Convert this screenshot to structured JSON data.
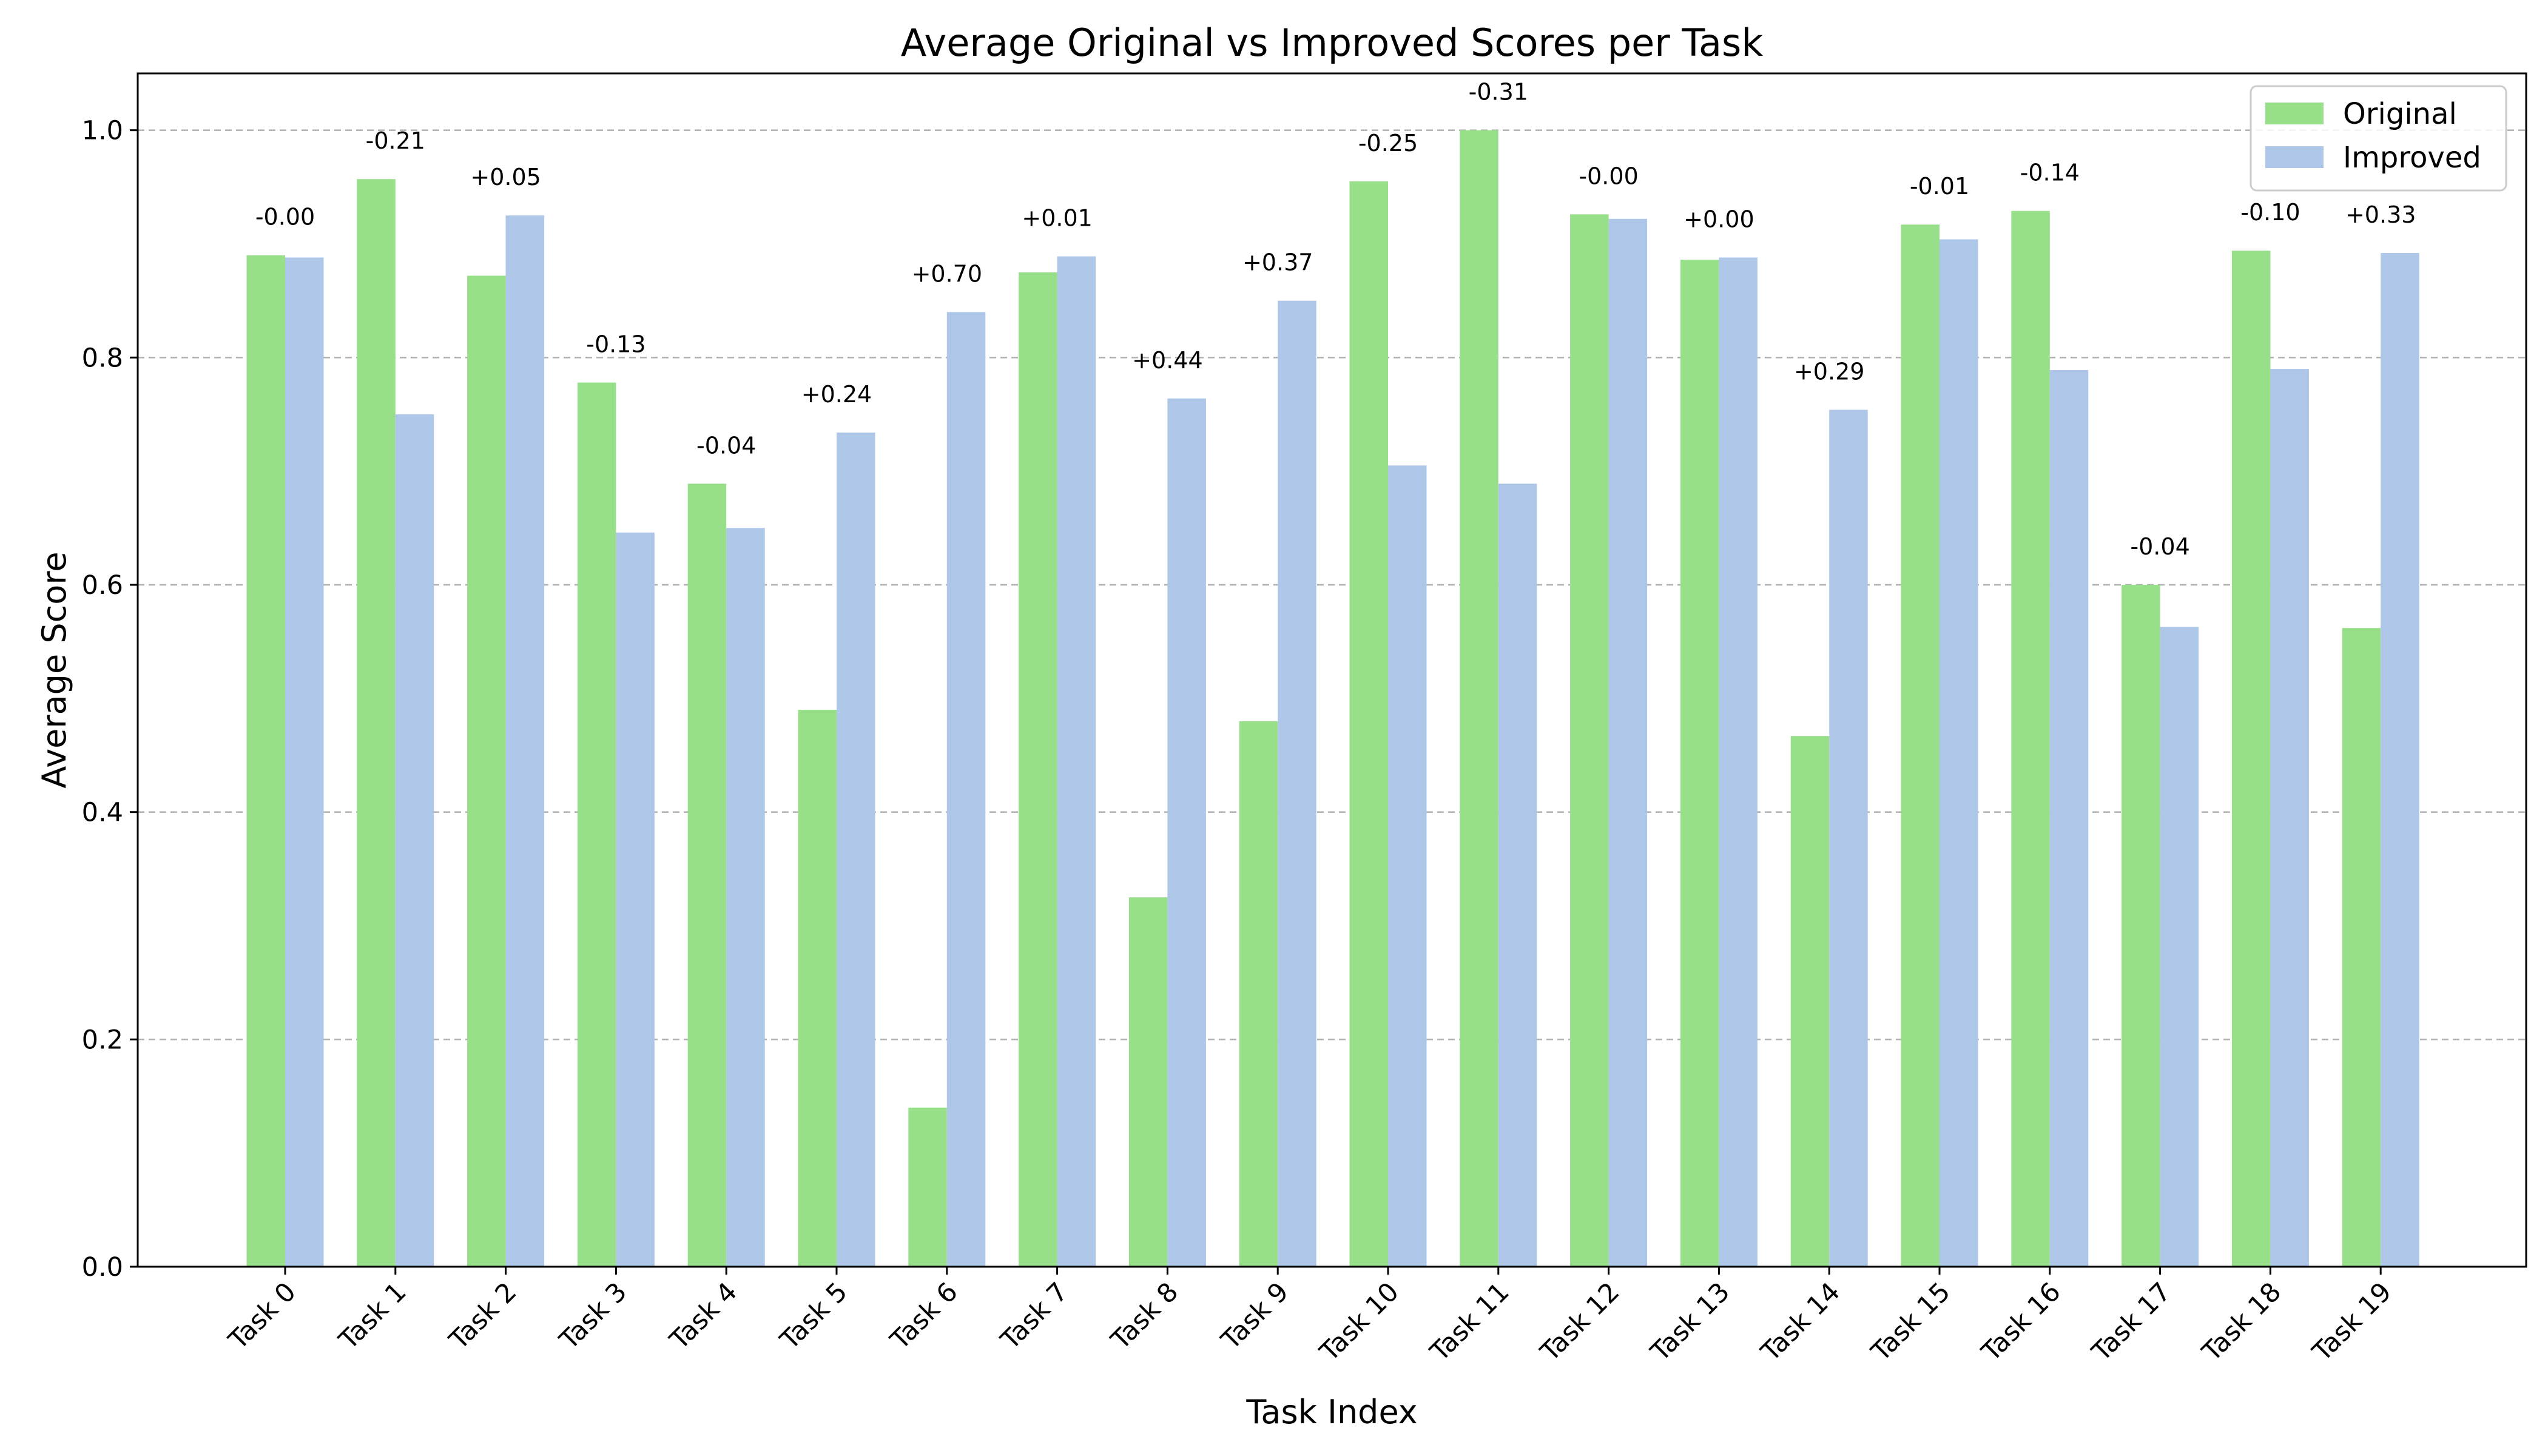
{
  "chart_data": {
    "type": "bar",
    "title": "Average Original vs Improved Scores per Task",
    "xlabel": "Task Index",
    "ylabel": "Average Score",
    "ylim": [
      0,
      1.05
    ],
    "yticks": [
      0.0,
      0.2,
      0.4,
      0.6,
      0.8,
      1.0
    ],
    "ytick_labels": [
      "0.0",
      "0.2",
      "0.4",
      "0.6",
      "0.8",
      "1.0"
    ],
    "grid": "horizontal dashed",
    "legend_position": "top-right",
    "categories": [
      "Task 0",
      "Task 1",
      "Task 2",
      "Task 3",
      "Task 4",
      "Task 5",
      "Task 6",
      "Task 7",
      "Task 8",
      "Task 9",
      "Task 10",
      "Task 11",
      "Task 12",
      "Task 13",
      "Task 14",
      "Task 15",
      "Task 16",
      "Task 17",
      "Task 18",
      "Task 19"
    ],
    "series": [
      {
        "name": "Original",
        "color": "#98df8a",
        "values": [
          0.89,
          0.957,
          0.872,
          0.778,
          0.689,
          0.49,
          0.14,
          0.875,
          0.325,
          0.48,
          0.955,
          1.0,
          0.926,
          0.886,
          0.467,
          0.917,
          0.929,
          0.6,
          0.894,
          0.562
        ]
      },
      {
        "name": "Improved",
        "color": "#aec7e8",
        "values": [
          0.888,
          0.75,
          0.925,
          0.646,
          0.65,
          0.734,
          0.84,
          0.889,
          0.764,
          0.85,
          0.705,
          0.689,
          0.922,
          0.888,
          0.754,
          0.904,
          0.789,
          0.563,
          0.79,
          0.892
        ]
      }
    ],
    "difference_labels": [
      "-0.00",
      "-0.21",
      "+0.05",
      "-0.13",
      "-0.04",
      "+0.24",
      "+0.70",
      "+0.01",
      "+0.44",
      "+0.37",
      "-0.25",
      "-0.31",
      "-0.00",
      "+0.00",
      "+0.29",
      "-0.01",
      "-0.14",
      "-0.04",
      "-0.10",
      "+0.33"
    ]
  }
}
